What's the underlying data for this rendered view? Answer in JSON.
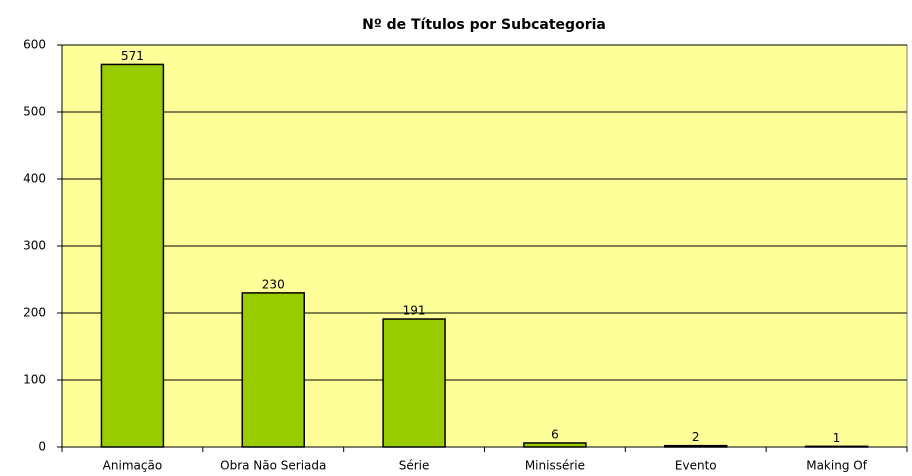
{
  "chart_data": {
    "type": "bar",
    "title": "Nº de Títulos por Subcategoria",
    "categories": [
      "Animação",
      "Obra Não Seriada",
      "Série",
      "Minissérie",
      "Evento",
      "Making Of"
    ],
    "values": [
      571,
      230,
      191,
      6,
      2,
      1
    ],
    "color": "#99cc00",
    "background": "#ffff99",
    "ylim": [
      0,
      600
    ],
    "yticks": [
      0,
      100,
      200,
      300,
      400,
      500,
      600
    ],
    "grid": true
  }
}
